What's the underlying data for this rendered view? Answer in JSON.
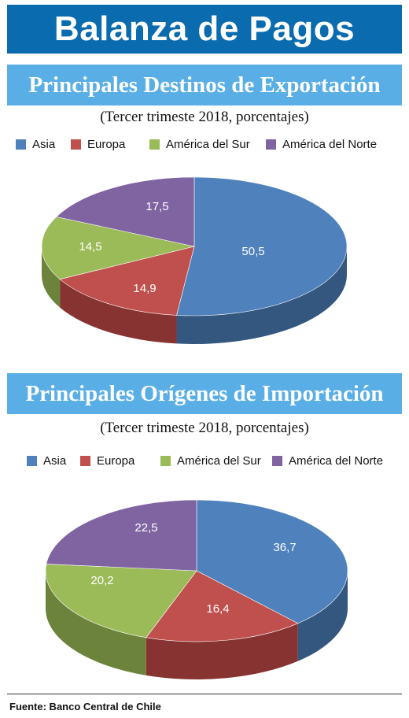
{
  "header": {
    "title": "Balanza de Pagos"
  },
  "colors": {
    "Asia": "#4f81bd",
    "Europa": "#c0504d",
    "America del Sur": "#9bbb59",
    "America del Norte": "#8064a2"
  },
  "chart_data": [
    {
      "type": "pie",
      "title": "Principales Destinos de Exportación",
      "subtitle": "(Tercer trimeste 2018, porcentajes)",
      "categories": [
        "Asia",
        "Europa",
        "América del Sur",
        "América del Norte"
      ],
      "values": [
        50.5,
        14.9,
        14.5,
        17.5
      ],
      "data_labels": [
        "50,5",
        "14,9",
        "14,5",
        "17,5"
      ],
      "legend_position": "top",
      "style": "3d"
    },
    {
      "type": "pie",
      "title": "Principales Orígenes de Importación",
      "subtitle": "(Tercer trimeste 2018, porcentajes)",
      "categories": [
        "Asia",
        "Europa",
        "América del Sur",
        "América del Norte"
      ],
      "values": [
        36.7,
        16.4,
        20.2,
        22.5
      ],
      "data_labels": [
        "36,7",
        "16,4",
        "20,2",
        "22,5"
      ],
      "legend_position": "top",
      "style": "3d"
    }
  ],
  "footer": {
    "source": "Fuente: Banco Central de Chile"
  }
}
